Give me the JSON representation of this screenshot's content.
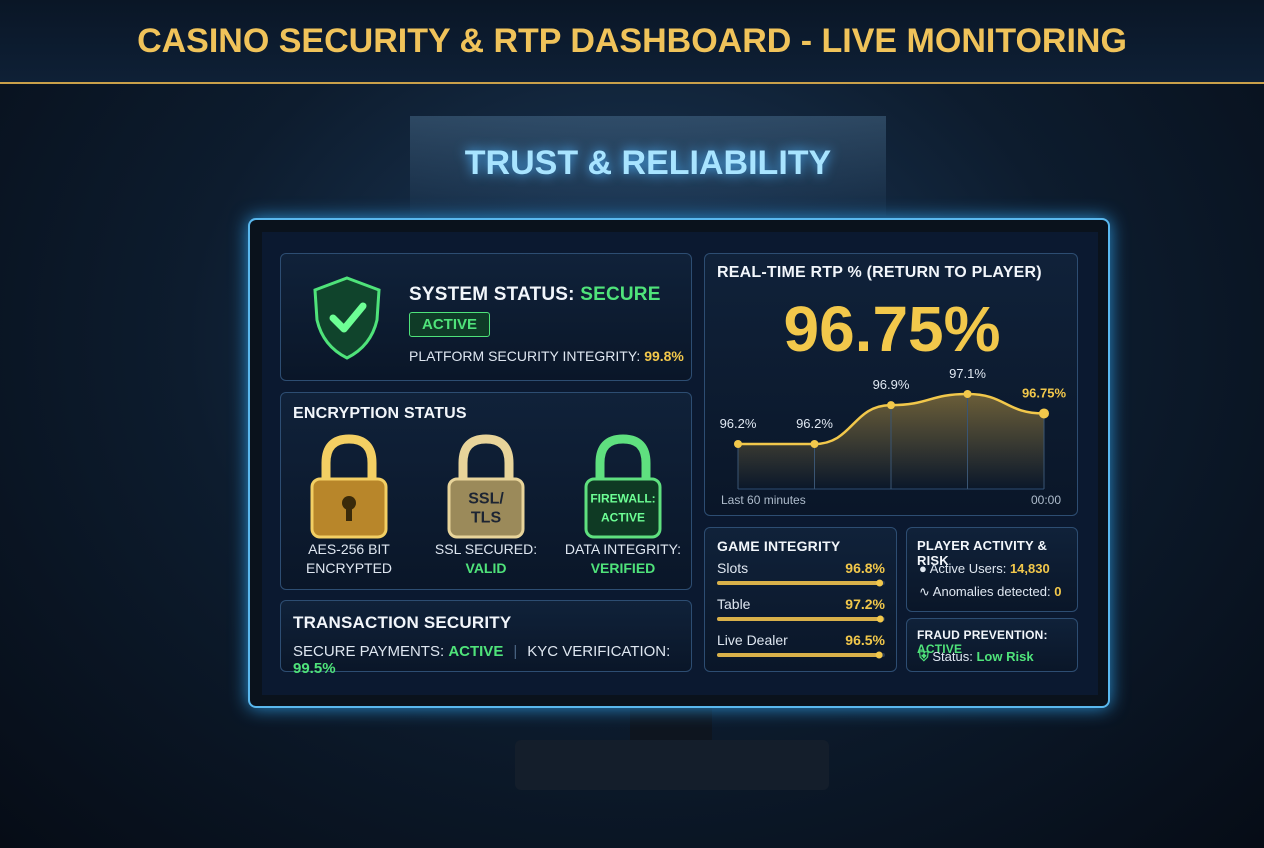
{
  "header": {
    "title": "CASINO SECURITY & RTP DASHBOARD - LIVE MONITORING",
    "banner": "TRUST & RELIABILITY"
  },
  "system_status": {
    "label": "SYSTEM STATUS:",
    "status": "SECURE",
    "badge": "ACTIVE",
    "integrity_label": "PLATFORM SECURITY INTEGRITY:",
    "integrity_value": "99.8%"
  },
  "encryption": {
    "title": "ENCRYPTION STATUS",
    "items": [
      {
        "lock_lines": [],
        "label_lines": [
          "AES-256 BIT",
          "ENCRYPTED"
        ]
      },
      {
        "lock_lines": [
          "SSL/",
          "TLS"
        ],
        "label_lines": [
          "SSL SECURED:",
          "VALID"
        ]
      },
      {
        "lock_lines": [
          "FIREWALL:",
          "ACTIVE"
        ],
        "label_lines": [
          "DATA INTEGRITY:",
          "VERIFIED"
        ]
      }
    ]
  },
  "transaction": {
    "title": "TRANSACTION SECURITY",
    "payments_label": "SECURE PAYMENTS:",
    "payments_value": "ACTIVE",
    "kyc_label": "KYC VERIFICATION:",
    "kyc_value": "99.5%"
  },
  "rtp": {
    "title": "REAL-TIME RTP % (RETURN TO PLAYER)",
    "value": "96.75%",
    "chart": {
      "type": "line",
      "values": [
        96.2,
        96.2,
        96.9,
        97.1,
        96.75
      ],
      "value_labels": [
        "96.2%",
        "96.2%",
        "96.9%",
        "97.1%",
        "96.75%"
      ],
      "x_start": "Last 60 minutes",
      "x_end": "00:00"
    }
  },
  "game_integrity": {
    "title": "GAME INTEGRITY",
    "chart": {
      "type": "bar",
      "categories": [
        "Slots",
        "Table",
        "Live Dealer"
      ],
      "values": [
        96.8,
        97.2,
        96.5
      ],
      "value_labels": [
        "96.8%",
        "97.2%",
        "96.5%"
      ],
      "xlim": [
        0,
        100
      ]
    }
  },
  "player_activity": {
    "title": "PLAYER ACTIVITY & RISK",
    "active_users_label": "Active Users:",
    "active_users_value": "14,830",
    "anomalies_label": "Anomalies detected:",
    "anomalies_value": "0"
  },
  "fraud": {
    "title": "FRAUD PREVENTION:",
    "title_status": "ACTIVE",
    "status_label": "Status:",
    "status_value": "Low Risk"
  }
}
